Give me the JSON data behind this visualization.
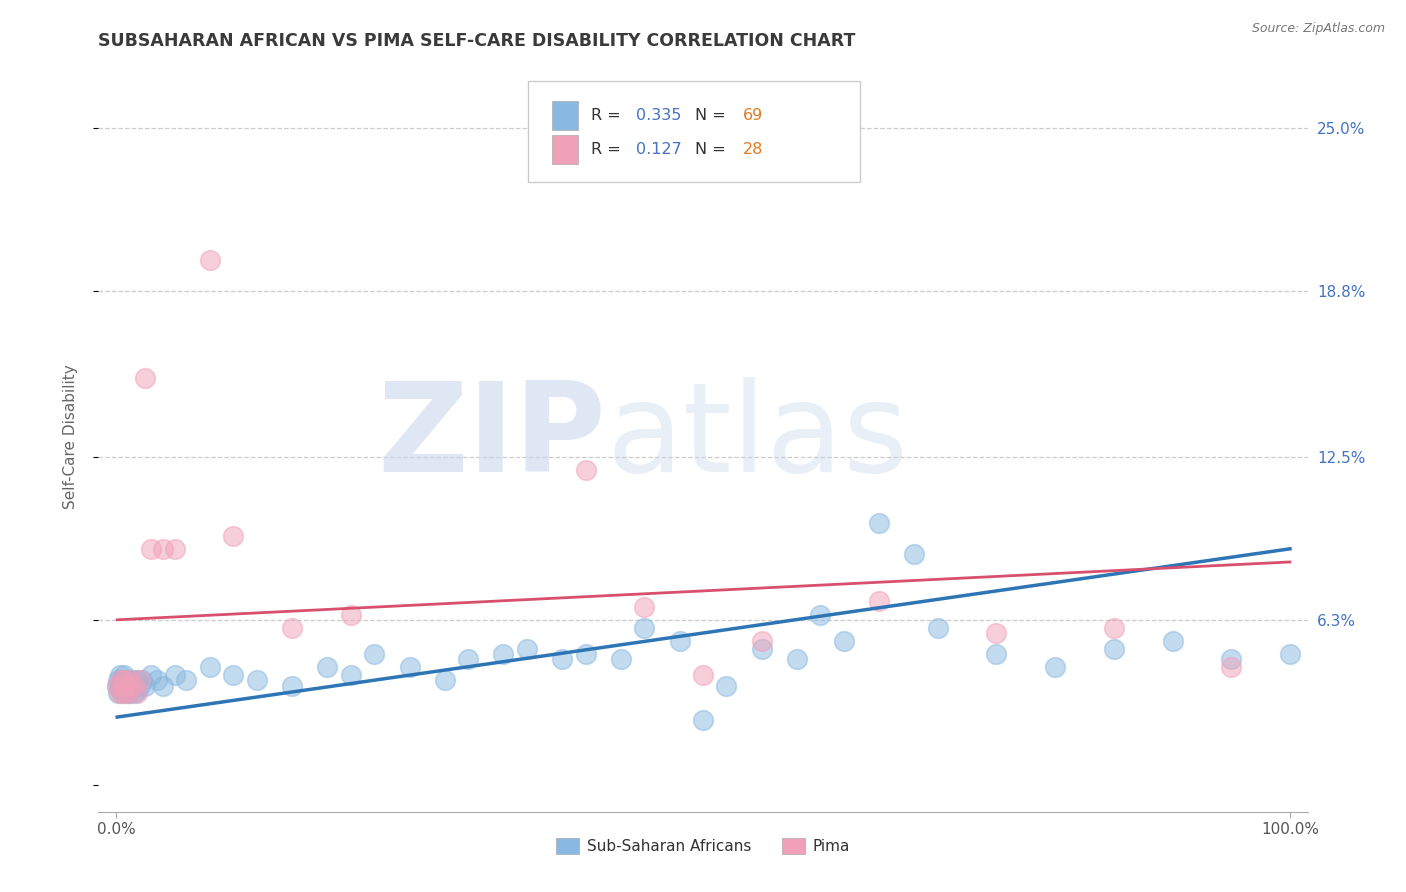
{
  "title": "SUBSAHARAN AFRICAN VS PIMA SELF-CARE DISABILITY CORRELATION CHART",
  "source": "Source: ZipAtlas.com",
  "ylabel": "Self-Care Disability",
  "yticks": [
    0.0,
    0.063,
    0.125,
    0.188,
    0.25
  ],
  "ytick_labels": [
    "",
    "6.3%",
    "12.5%",
    "18.8%",
    "25.0%"
  ],
  "xlim": [
    -0.015,
    1.015
  ],
  "ylim": [
    -0.01,
    0.275
  ],
  "watermark_zip": "ZIP",
  "watermark_atlas": "atlas",
  "blue_color": "#89b8e0",
  "pink_color": "#f0a0b8",
  "blue_R": 0.335,
  "blue_N": 69,
  "pink_R": 0.127,
  "pink_N": 28,
  "blue_scatter_x": [
    0.001,
    0.002,
    0.002,
    0.003,
    0.003,
    0.004,
    0.004,
    0.005,
    0.005,
    0.006,
    0.006,
    0.007,
    0.007,
    0.008,
    0.008,
    0.009,
    0.009,
    0.01,
    0.01,
    0.011,
    0.011,
    0.012,
    0.013,
    0.014,
    0.015,
    0.016,
    0.017,
    0.018,
    0.019,
    0.02,
    0.022,
    0.025,
    0.03,
    0.035,
    0.04,
    0.05,
    0.06,
    0.08,
    0.1,
    0.12,
    0.15,
    0.18,
    0.2,
    0.22,
    0.25,
    0.28,
    0.3,
    0.33,
    0.35,
    0.38,
    0.4,
    0.43,
    0.45,
    0.48,
    0.5,
    0.52,
    0.55,
    0.58,
    0.6,
    0.62,
    0.65,
    0.68,
    0.7,
    0.75,
    0.8,
    0.85,
    0.9,
    0.95,
    1.0
  ],
  "blue_scatter_y": [
    0.038,
    0.035,
    0.04,
    0.038,
    0.042,
    0.037,
    0.04,
    0.038,
    0.035,
    0.04,
    0.036,
    0.038,
    0.042,
    0.037,
    0.04,
    0.035,
    0.038,
    0.04,
    0.036,
    0.038,
    0.035,
    0.037,
    0.04,
    0.038,
    0.035,
    0.04,
    0.038,
    0.036,
    0.04,
    0.038,
    0.04,
    0.038,
    0.042,
    0.04,
    0.038,
    0.042,
    0.04,
    0.045,
    0.042,
    0.04,
    0.038,
    0.045,
    0.042,
    0.05,
    0.045,
    0.04,
    0.048,
    0.05,
    0.052,
    0.048,
    0.05,
    0.048,
    0.06,
    0.055,
    0.025,
    0.038,
    0.052,
    0.048,
    0.065,
    0.055,
    0.1,
    0.088,
    0.06,
    0.05,
    0.045,
    0.052,
    0.055,
    0.048,
    0.05
  ],
  "pink_scatter_x": [
    0.001,
    0.003,
    0.004,
    0.005,
    0.006,
    0.007,
    0.008,
    0.01,
    0.012,
    0.015,
    0.018,
    0.02,
    0.025,
    0.03,
    0.04,
    0.05,
    0.08,
    0.1,
    0.15,
    0.2,
    0.4,
    0.45,
    0.5,
    0.55,
    0.65,
    0.75,
    0.85,
    0.95
  ],
  "pink_scatter_y": [
    0.038,
    0.035,
    0.04,
    0.038,
    0.035,
    0.04,
    0.038,
    0.035,
    0.04,
    0.038,
    0.035,
    0.04,
    0.155,
    0.09,
    0.09,
    0.09,
    0.2,
    0.095,
    0.06,
    0.065,
    0.12,
    0.068,
    0.042,
    0.055,
    0.07,
    0.058,
    0.06,
    0.045
  ],
  "blue_trend_start_x": 0.001,
  "blue_trend_end_x": 1.0,
  "blue_trend_start_y": 0.026,
  "blue_trend_end_y": 0.09,
  "pink_trend_start_x": 0.001,
  "pink_trend_end_x": 1.0,
  "pink_trend_start_y": 0.063,
  "pink_trend_end_y": 0.085,
  "legend_blue_label": "Sub-Saharan Africans",
  "legend_pink_label": "Pima",
  "title_color": "#3a3a3a",
  "axis_label_color": "#666666",
  "right_tick_color": "#4472c4",
  "grid_color": "#cccccc",
  "blue_trend_color": "#2e75b6",
  "pink_trend_color": "#d94f6e"
}
